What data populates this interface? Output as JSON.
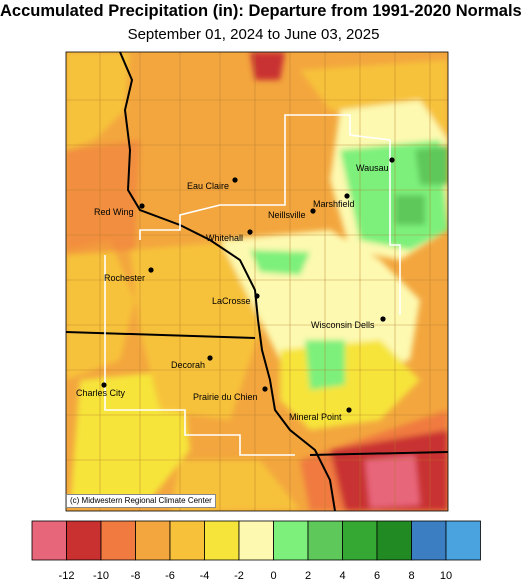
{
  "title": "Accumulated Precipitation (in): Departure from 1991-2020 Normals",
  "subtitle": "September 01, 2024 to June 03, 2025",
  "credit": "(c) Midwestern Regional Climate Center",
  "cities": [
    {
      "id": "wausau",
      "name": "Wausau"
    },
    {
      "id": "eau-claire",
      "name": "Eau Claire"
    },
    {
      "id": "marshfield",
      "name": "Marshfield"
    },
    {
      "id": "red-wing",
      "name": "Red Wing"
    },
    {
      "id": "neillsville",
      "name": "Neillsville"
    },
    {
      "id": "whitehall",
      "name": "Whitehall"
    },
    {
      "id": "rochester",
      "name": "Rochester"
    },
    {
      "id": "lacrosse",
      "name": "LaCrosse"
    },
    {
      "id": "wisconsin-dells",
      "name": "Wisconsin Dells"
    },
    {
      "id": "decorah",
      "name": "Decorah"
    },
    {
      "id": "charles-city",
      "name": "Charles City"
    },
    {
      "id": "prairie-du-chien",
      "name": "Prairie du Chien"
    },
    {
      "id": "mineral-point",
      "name": "Mineral Point"
    }
  ],
  "legend": {
    "colors": [
      "#e8667a",
      "#c93030",
      "#f07a3f",
      "#f3a63e",
      "#f7c23a",
      "#f6e43a",
      "#fdf9b0",
      "#7df07b",
      "#5ec85a",
      "#35a833",
      "#228a22",
      "#3b7fc2",
      "#4aa3de"
    ],
    "ticks": [
      "-12",
      "-10",
      "-8",
      "-6",
      "-4",
      "-2",
      "0",
      "2",
      "4",
      "6",
      "8",
      "10"
    ]
  },
  "colors": {
    "minus8": "#f07a3f",
    "minus6": "#f3a63e",
    "minus4": "#f7c23a",
    "minus2": "#f6e43a",
    "zero": "#fdf9b0",
    "plus2": "#7df07b",
    "plus4": "#5ec85a",
    "minus10": "#c93030",
    "minus12": "#e8667a"
  }
}
